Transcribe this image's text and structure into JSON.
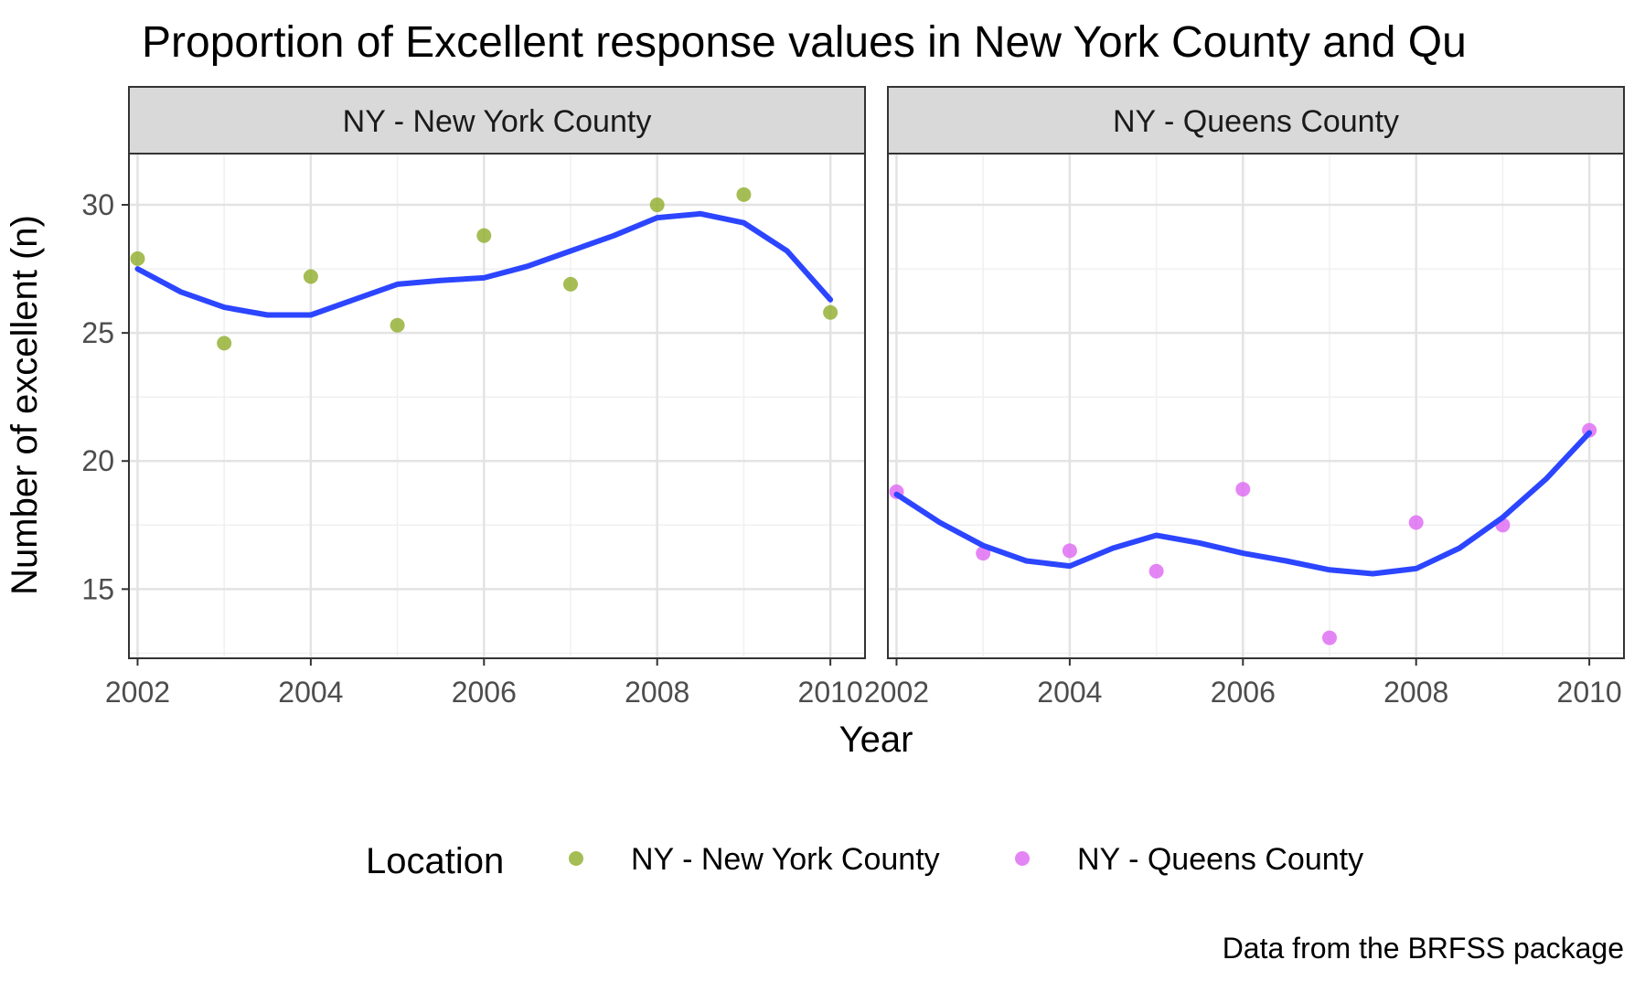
{
  "chart_data": {
    "type": "scatter",
    "title": "Proportion of Excellent response values in New York County and Qu",
    "xlabel": "Year",
    "ylabel": "Number of excellent (n)",
    "caption": "Data from the BRFSS package",
    "xlim": [
      2001.9,
      2010.4
    ],
    "ylim": [
      12.3,
      32.0
    ],
    "x_ticks": [
      2002,
      2004,
      2006,
      2008,
      2010
    ],
    "y_ticks": [
      15,
      20,
      25,
      30
    ],
    "grid": true,
    "legend": {
      "title": "Location",
      "position": "bottom",
      "entries": [
        {
          "label": "NY - New York County",
          "color": "#8fac29"
        },
        {
          "label": "NY - Queens County",
          "color": "#dd66f2"
        }
      ]
    },
    "smooth_color": "#2c45ff",
    "panels": [
      {
        "strip": "NY - New York County",
        "point_color": "#8fac29",
        "points": [
          {
            "x": 2002,
            "y": 27.9
          },
          {
            "x": 2003,
            "y": 24.6
          },
          {
            "x": 2004,
            "y": 27.2
          },
          {
            "x": 2005,
            "y": 25.3
          },
          {
            "x": 2006,
            "y": 28.8
          },
          {
            "x": 2007,
            "y": 26.9
          },
          {
            "x": 2008,
            "y": 30.0
          },
          {
            "x": 2009,
            "y": 30.4
          },
          {
            "x": 2010,
            "y": 25.8
          }
        ],
        "smooth": [
          {
            "x": 2002,
            "y": 27.5
          },
          {
            "x": 2002.5,
            "y": 26.6
          },
          {
            "x": 2003,
            "y": 26.0
          },
          {
            "x": 2003.5,
            "y": 25.7
          },
          {
            "x": 2004,
            "y": 25.7
          },
          {
            "x": 2004.5,
            "y": 26.3
          },
          {
            "x": 2005,
            "y": 26.9
          },
          {
            "x": 2005.5,
            "y": 27.05
          },
          {
            "x": 2006,
            "y": 27.15
          },
          {
            "x": 2006.5,
            "y": 27.6
          },
          {
            "x": 2007,
            "y": 28.2
          },
          {
            "x": 2007.5,
            "y": 28.8
          },
          {
            "x": 2008,
            "y": 29.5
          },
          {
            "x": 2008.5,
            "y": 29.65
          },
          {
            "x": 2009,
            "y": 29.3
          },
          {
            "x": 2009.5,
            "y": 28.2
          },
          {
            "x": 2010,
            "y": 26.3
          }
        ]
      },
      {
        "strip": "NY - Queens County",
        "point_color": "#dd66f2",
        "points": [
          {
            "x": 2002,
            "y": 18.8
          },
          {
            "x": 2003,
            "y": 16.4
          },
          {
            "x": 2004,
            "y": 16.5
          },
          {
            "x": 2005,
            "y": 15.7
          },
          {
            "x": 2006,
            "y": 18.9
          },
          {
            "x": 2007,
            "y": 13.1
          },
          {
            "x": 2008,
            "y": 17.6
          },
          {
            "x": 2009,
            "y": 17.5
          },
          {
            "x": 2010,
            "y": 21.2
          }
        ],
        "smooth": [
          {
            "x": 2002,
            "y": 18.7
          },
          {
            "x": 2002.5,
            "y": 17.6
          },
          {
            "x": 2003,
            "y": 16.7
          },
          {
            "x": 2003.5,
            "y": 16.1
          },
          {
            "x": 2004,
            "y": 15.9
          },
          {
            "x": 2004.5,
            "y": 16.6
          },
          {
            "x": 2005,
            "y": 17.1
          },
          {
            "x": 2005.5,
            "y": 16.8
          },
          {
            "x": 2006,
            "y": 16.4
          },
          {
            "x": 2006.5,
            "y": 16.1
          },
          {
            "x": 2007,
            "y": 15.75
          },
          {
            "x": 2007.5,
            "y": 15.6
          },
          {
            "x": 2008,
            "y": 15.8
          },
          {
            "x": 2008.5,
            "y": 16.6
          },
          {
            "x": 2009,
            "y": 17.8
          },
          {
            "x": 2009.5,
            "y": 19.3
          },
          {
            "x": 2010,
            "y": 21.1
          }
        ]
      }
    ]
  }
}
